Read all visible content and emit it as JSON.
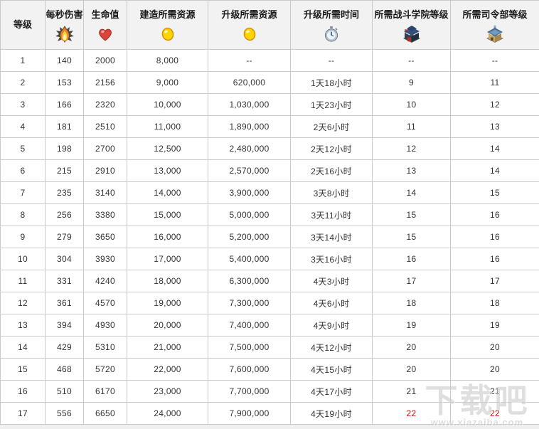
{
  "page": {
    "background_color": "#efefef",
    "accent_red": "#cc1111",
    "header_bg": "#f2f2f2",
    "border_color": "#c9c9c9",
    "watermark": {
      "logo": "下载吧",
      "url": "www.xiazaiba.com"
    }
  },
  "table": {
    "columns": [
      {
        "label": "等级",
        "icon": null
      },
      {
        "label": "每秒伤害",
        "icon": "flame-icon"
      },
      {
        "label": "生命值",
        "icon": "heart-icon"
      },
      {
        "label": "建造所需资源",
        "icon": "gold-coin-icon"
      },
      {
        "label": "升级所需资源",
        "icon": "gold-coin-icon"
      },
      {
        "label": "升级所需时间",
        "icon": "stopwatch-icon"
      },
      {
        "label": "所需战斗学院等级",
        "icon": "academy-building-icon"
      },
      {
        "label": "所需司令部等级",
        "icon": "headquarters-building-icon"
      }
    ],
    "rows": [
      [
        "1",
        "140",
        "2000",
        "8,000",
        "--",
        "--",
        "--",
        "--"
      ],
      [
        "2",
        "153",
        "2156",
        "9,000",
        "620,000",
        "1天18小时",
        "9",
        "11"
      ],
      [
        "3",
        "166",
        "2320",
        "10,000",
        "1,030,000",
        "1天23小时",
        "10",
        "12"
      ],
      [
        "4",
        "181",
        "2510",
        "11,000",
        "1,890,000",
        "2天6小时",
        "11",
        "13"
      ],
      [
        "5",
        "198",
        "2700",
        "12,500",
        "2,480,000",
        "2天12小时",
        "12",
        "14"
      ],
      [
        "6",
        "215",
        "2910",
        "13,000",
        "2,570,000",
        "2天16小时",
        "13",
        "14"
      ],
      [
        "7",
        "235",
        "3140",
        "14,000",
        "3,900,000",
        "3天8小时",
        "14",
        "15"
      ],
      [
        "8",
        "256",
        "3380",
        "15,000",
        "5,000,000",
        "3天11小时",
        "15",
        "16"
      ],
      [
        "9",
        "279",
        "3650",
        "16,000",
        "5,200,000",
        "3天14小时",
        "15",
        "16"
      ],
      [
        "10",
        "304",
        "3930",
        "17,000",
        "5,400,000",
        "3天16小时",
        "16",
        "16"
      ],
      [
        "11",
        "331",
        "4240",
        "18,000",
        "6,300,000",
        "4天3小时",
        "17",
        "17"
      ],
      [
        "12",
        "361",
        "4570",
        "19,000",
        "7,300,000",
        "4天6小时",
        "18",
        "18"
      ],
      [
        "13",
        "394",
        "4930",
        "20,000",
        "7,400,000",
        "4天9小时",
        "19",
        "19"
      ],
      [
        "14",
        "429",
        "5310",
        "21,000",
        "7,500,000",
        "4天12小时",
        "20",
        "20"
      ],
      [
        "15",
        "468",
        "5720",
        "22,000",
        "7,600,000",
        "4天15小时",
        "20",
        "20"
      ],
      [
        "16",
        "510",
        "6170",
        "23,000",
        "7,700,000",
        "4天17小时",
        "21",
        "21"
      ],
      [
        "17",
        "556",
        "6650",
        "24,000",
        "7,900,000",
        "4天19小时",
        "22",
        "22"
      ]
    ],
    "red_highlight": {
      "row_index": 16,
      "col_indexes": [
        6,
        7
      ]
    }
  }
}
